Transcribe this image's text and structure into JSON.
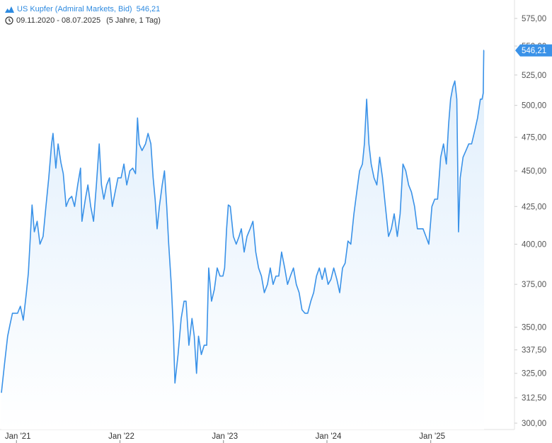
{
  "header": {
    "instrument": "US Kupfer (Admiral Markets, Bid)",
    "price": "546,21",
    "date_range": "09.11.2020 - 08.07.2025",
    "period": "(5 Jahre, 1 Tag)",
    "icons": [
      "mountain-chart-icon",
      "clock-icon"
    ]
  },
  "colors": {
    "line": "#3a92e8",
    "fill_top": "#dfeefc",
    "fill_bottom": "#ffffff",
    "label_bg": "#3a92e8",
    "axis_line": "#e2e2e2"
  },
  "chart_data": {
    "type": "area",
    "scale": "log",
    "ylim": [
      290,
      585
    ],
    "yticks": [
      300,
      312.5,
      325,
      337.5,
      350,
      375,
      400,
      425,
      450,
      475,
      500,
      525,
      550,
      575
    ],
    "ytick_labels": [
      "300,00",
      "312,50",
      "325,00",
      "337,50",
      "350,00",
      "375,00",
      "400,00",
      "425,00",
      "450,00",
      "475,00",
      "500,00",
      "525,00",
      "550,00",
      "575,00"
    ],
    "xtick_labels": [
      "Jan '21",
      "Jan '22",
      "Jan '23",
      "Jan '24",
      "Jan '25"
    ],
    "xticks": [
      "2021-01-01",
      "2022-01-01",
      "2023-01-01",
      "2024-01-01",
      "2025-01-01"
    ],
    "x_range": [
      "2020-11-09",
      "2025-07-08"
    ],
    "last_value_label": "546,21",
    "series": [
      {
        "points": [
          [
            "2020-11-09",
            315
          ],
          [
            "2020-11-20",
            330
          ],
          [
            "2020-12-01",
            345
          ],
          [
            "2020-12-10",
            352
          ],
          [
            "2020-12-18",
            358
          ],
          [
            "2021-01-05",
            358
          ],
          [
            "2021-01-15",
            362
          ],
          [
            "2021-01-25",
            354
          ],
          [
            "2021-02-05",
            370
          ],
          [
            "2021-02-12",
            382
          ],
          [
            "2021-02-25",
            426
          ],
          [
            "2021-03-05",
            408
          ],
          [
            "2021-03-15",
            415
          ],
          [
            "2021-03-25",
            400
          ],
          [
            "2021-04-05",
            405
          ],
          [
            "2021-04-15",
            425
          ],
          [
            "2021-04-25",
            445
          ],
          [
            "2021-05-05",
            470
          ],
          [
            "2021-05-10",
            478
          ],
          [
            "2021-05-20",
            452
          ],
          [
            "2021-05-28",
            470
          ],
          [
            "2021-06-07",
            456
          ],
          [
            "2021-06-15",
            448
          ],
          [
            "2021-06-25",
            425
          ],
          [
            "2021-07-05",
            430
          ],
          [
            "2021-07-15",
            432
          ],
          [
            "2021-07-25",
            425
          ],
          [
            "2021-08-05",
            440
          ],
          [
            "2021-08-15",
            452
          ],
          [
            "2021-08-20",
            415
          ],
          [
            "2021-09-01",
            430
          ],
          [
            "2021-09-10",
            440
          ],
          [
            "2021-09-20",
            425
          ],
          [
            "2021-09-30",
            415
          ],
          [
            "2021-10-10",
            440
          ],
          [
            "2021-10-20",
            470
          ],
          [
            "2021-10-28",
            440
          ],
          [
            "2021-11-05",
            430
          ],
          [
            "2021-11-15",
            440
          ],
          [
            "2021-11-25",
            445
          ],
          [
            "2021-12-05",
            425
          ],
          [
            "2021-12-15",
            435
          ],
          [
            "2021-12-25",
            445
          ],
          [
            "2022-01-05",
            445
          ],
          [
            "2022-01-15",
            455
          ],
          [
            "2022-01-25",
            440
          ],
          [
            "2022-02-05",
            450
          ],
          [
            "2022-02-15",
            452
          ],
          [
            "2022-02-25",
            448
          ],
          [
            "2022-03-04",
            490
          ],
          [
            "2022-03-10",
            470
          ],
          [
            "2022-03-20",
            465
          ],
          [
            "2022-04-01",
            470
          ],
          [
            "2022-04-10",
            478
          ],
          [
            "2022-04-20",
            470
          ],
          [
            "2022-04-28",
            445
          ],
          [
            "2022-05-05",
            430
          ],
          [
            "2022-05-12",
            410
          ],
          [
            "2022-05-20",
            425
          ],
          [
            "2022-05-30",
            440
          ],
          [
            "2022-06-07",
            450
          ],
          [
            "2022-06-15",
            425
          ],
          [
            "2022-06-22",
            400
          ],
          [
            "2022-07-01",
            375
          ],
          [
            "2022-07-08",
            350
          ],
          [
            "2022-07-14",
            320
          ],
          [
            "2022-07-25",
            335
          ],
          [
            "2022-08-05",
            355
          ],
          [
            "2022-08-15",
            365
          ],
          [
            "2022-08-22",
            365
          ],
          [
            "2022-09-01",
            340
          ],
          [
            "2022-09-12",
            355
          ],
          [
            "2022-09-20",
            345
          ],
          [
            "2022-09-28",
            325
          ],
          [
            "2022-10-05",
            345
          ],
          [
            "2022-10-15",
            335
          ],
          [
            "2022-10-25",
            340
          ],
          [
            "2022-11-03",
            340
          ],
          [
            "2022-11-10",
            385
          ],
          [
            "2022-11-20",
            365
          ],
          [
            "2022-11-30",
            372
          ],
          [
            "2022-12-10",
            385
          ],
          [
            "2022-12-20",
            380
          ],
          [
            "2022-12-30",
            380
          ],
          [
            "2023-01-05",
            385
          ],
          [
            "2023-01-12",
            410
          ],
          [
            "2023-01-18",
            426
          ],
          [
            "2023-01-25",
            425
          ],
          [
            "2023-02-05",
            405
          ],
          [
            "2023-02-15",
            400
          ],
          [
            "2023-02-25",
            405
          ],
          [
            "2023-03-05",
            410
          ],
          [
            "2023-03-15",
            395
          ],
          [
            "2023-03-25",
            405
          ],
          [
            "2023-04-05",
            410
          ],
          [
            "2023-04-15",
            415
          ],
          [
            "2023-04-25",
            395
          ],
          [
            "2023-05-05",
            385
          ],
          [
            "2023-05-15",
            380
          ],
          [
            "2023-05-25",
            370
          ],
          [
            "2023-06-05",
            375
          ],
          [
            "2023-06-15",
            385
          ],
          [
            "2023-06-25",
            375
          ],
          [
            "2023-07-05",
            380
          ],
          [
            "2023-07-15",
            380
          ],
          [
            "2023-07-25",
            395
          ],
          [
            "2023-08-05",
            385
          ],
          [
            "2023-08-15",
            375
          ],
          [
            "2023-08-25",
            380
          ],
          [
            "2023-09-05",
            385
          ],
          [
            "2023-09-15",
            375
          ],
          [
            "2023-09-25",
            370
          ],
          [
            "2023-10-05",
            360
          ],
          [
            "2023-10-15",
            358
          ],
          [
            "2023-10-25",
            358
          ],
          [
            "2023-11-05",
            365
          ],
          [
            "2023-11-15",
            370
          ],
          [
            "2023-11-25",
            380
          ],
          [
            "2023-12-05",
            385
          ],
          [
            "2023-12-15",
            378
          ],
          [
            "2023-12-25",
            385
          ],
          [
            "2024-01-05",
            375
          ],
          [
            "2024-01-15",
            378
          ],
          [
            "2024-01-25",
            385
          ],
          [
            "2024-02-05",
            378
          ],
          [
            "2024-02-15",
            370
          ],
          [
            "2024-02-25",
            385
          ],
          [
            "2024-03-05",
            388
          ],
          [
            "2024-03-15",
            402
          ],
          [
            "2024-03-25",
            400
          ],
          [
            "2024-04-05",
            420
          ],
          [
            "2024-04-15",
            435
          ],
          [
            "2024-04-25",
            450
          ],
          [
            "2024-05-05",
            455
          ],
          [
            "2024-05-12",
            470
          ],
          [
            "2024-05-20",
            505
          ],
          [
            "2024-05-28",
            470
          ],
          [
            "2024-06-05",
            455
          ],
          [
            "2024-06-15",
            445
          ],
          [
            "2024-06-25",
            440
          ],
          [
            "2024-07-05",
            460
          ],
          [
            "2024-07-15",
            445
          ],
          [
            "2024-07-25",
            425
          ],
          [
            "2024-08-05",
            405
          ],
          [
            "2024-08-15",
            410
          ],
          [
            "2024-08-25",
            420
          ],
          [
            "2024-09-05",
            405
          ],
          [
            "2024-09-15",
            420
          ],
          [
            "2024-09-25",
            455
          ],
          [
            "2024-10-05",
            450
          ],
          [
            "2024-10-15",
            440
          ],
          [
            "2024-10-25",
            435
          ],
          [
            "2024-11-05",
            425
          ],
          [
            "2024-11-15",
            410
          ],
          [
            "2024-11-25",
            410
          ],
          [
            "2024-12-05",
            410
          ],
          [
            "2024-12-15",
            405
          ],
          [
            "2024-12-25",
            400
          ],
          [
            "2025-01-05",
            425
          ],
          [
            "2025-01-15",
            430
          ],
          [
            "2025-01-25",
            430
          ],
          [
            "2025-02-05",
            460
          ],
          [
            "2025-02-15",
            470
          ],
          [
            "2025-02-25",
            455
          ],
          [
            "2025-03-05",
            485
          ],
          [
            "2025-03-12",
            505
          ],
          [
            "2025-03-20",
            515
          ],
          [
            "2025-03-27",
            520
          ],
          [
            "2025-04-03",
            505
          ],
          [
            "2025-04-07",
            440
          ],
          [
            "2025-04-09",
            408
          ],
          [
            "2025-04-15",
            445
          ],
          [
            "2025-04-25",
            460
          ],
          [
            "2025-05-05",
            465
          ],
          [
            "2025-05-15",
            470
          ],
          [
            "2025-05-25",
            470
          ],
          [
            "2025-06-05",
            480
          ],
          [
            "2025-06-15",
            490
          ],
          [
            "2025-06-25",
            505
          ],
          [
            "2025-07-01",
            505
          ],
          [
            "2025-07-05",
            510
          ],
          [
            "2025-07-07",
            546.21
          ],
          [
            "2025-07-08",
            546.21
          ]
        ]
      }
    ]
  }
}
